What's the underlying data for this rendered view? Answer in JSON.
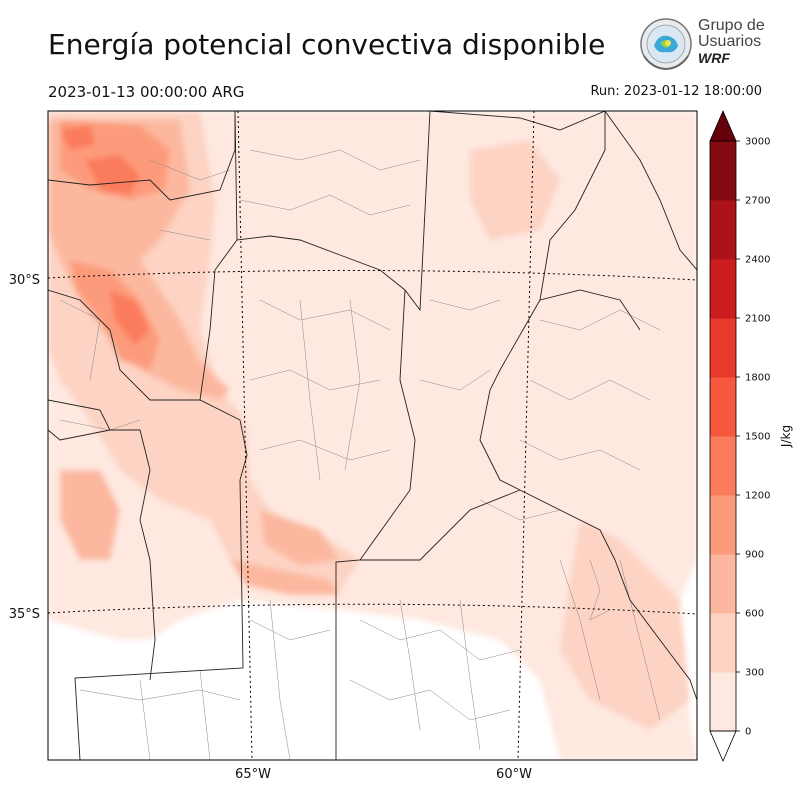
{
  "header": {
    "title": "Energía potencial convectiva disponible",
    "valid_time": "2023-01-13 00:00:00 ARG",
    "run_time": "Run: 2023-01-12 18:00:00"
  },
  "logo": {
    "line1": "Grupo de",
    "line2": "Usuarios",
    "line3": "WRF",
    "icon": "wrf-globe-logo"
  },
  "map": {
    "lat_labels": [
      "30°S",
      "35°S"
    ],
    "lon_labels": [
      "65°W",
      "60°W"
    ]
  },
  "colorbar": {
    "units": "J/kg",
    "levels": [
      0,
      300,
      600,
      900,
      1200,
      1500,
      1800,
      2100,
      2400,
      2700,
      3000
    ],
    "tick_labels": [
      "0",
      "300",
      "600",
      "900",
      "1200",
      "1500",
      "1800",
      "2100",
      "2400",
      "2700",
      "3000"
    ],
    "colors": [
      "#fee8e0",
      "#fdd3c3",
      "#fcb89f",
      "#fc9b7c",
      "#fb7c5c",
      "#f5583d",
      "#e83a2c",
      "#cb1c1e",
      "#ab1318",
      "#850a11"
    ],
    "over_color": "#67000d",
    "extend": "both"
  },
  "colors": {
    "field_low": "#fee8e0",
    "field_mid": "#fdd3c3",
    "field_high": "#fcb89f",
    "field_peak": "#fb7c5c",
    "province_border": "#222222",
    "department_border": "#888888"
  }
}
